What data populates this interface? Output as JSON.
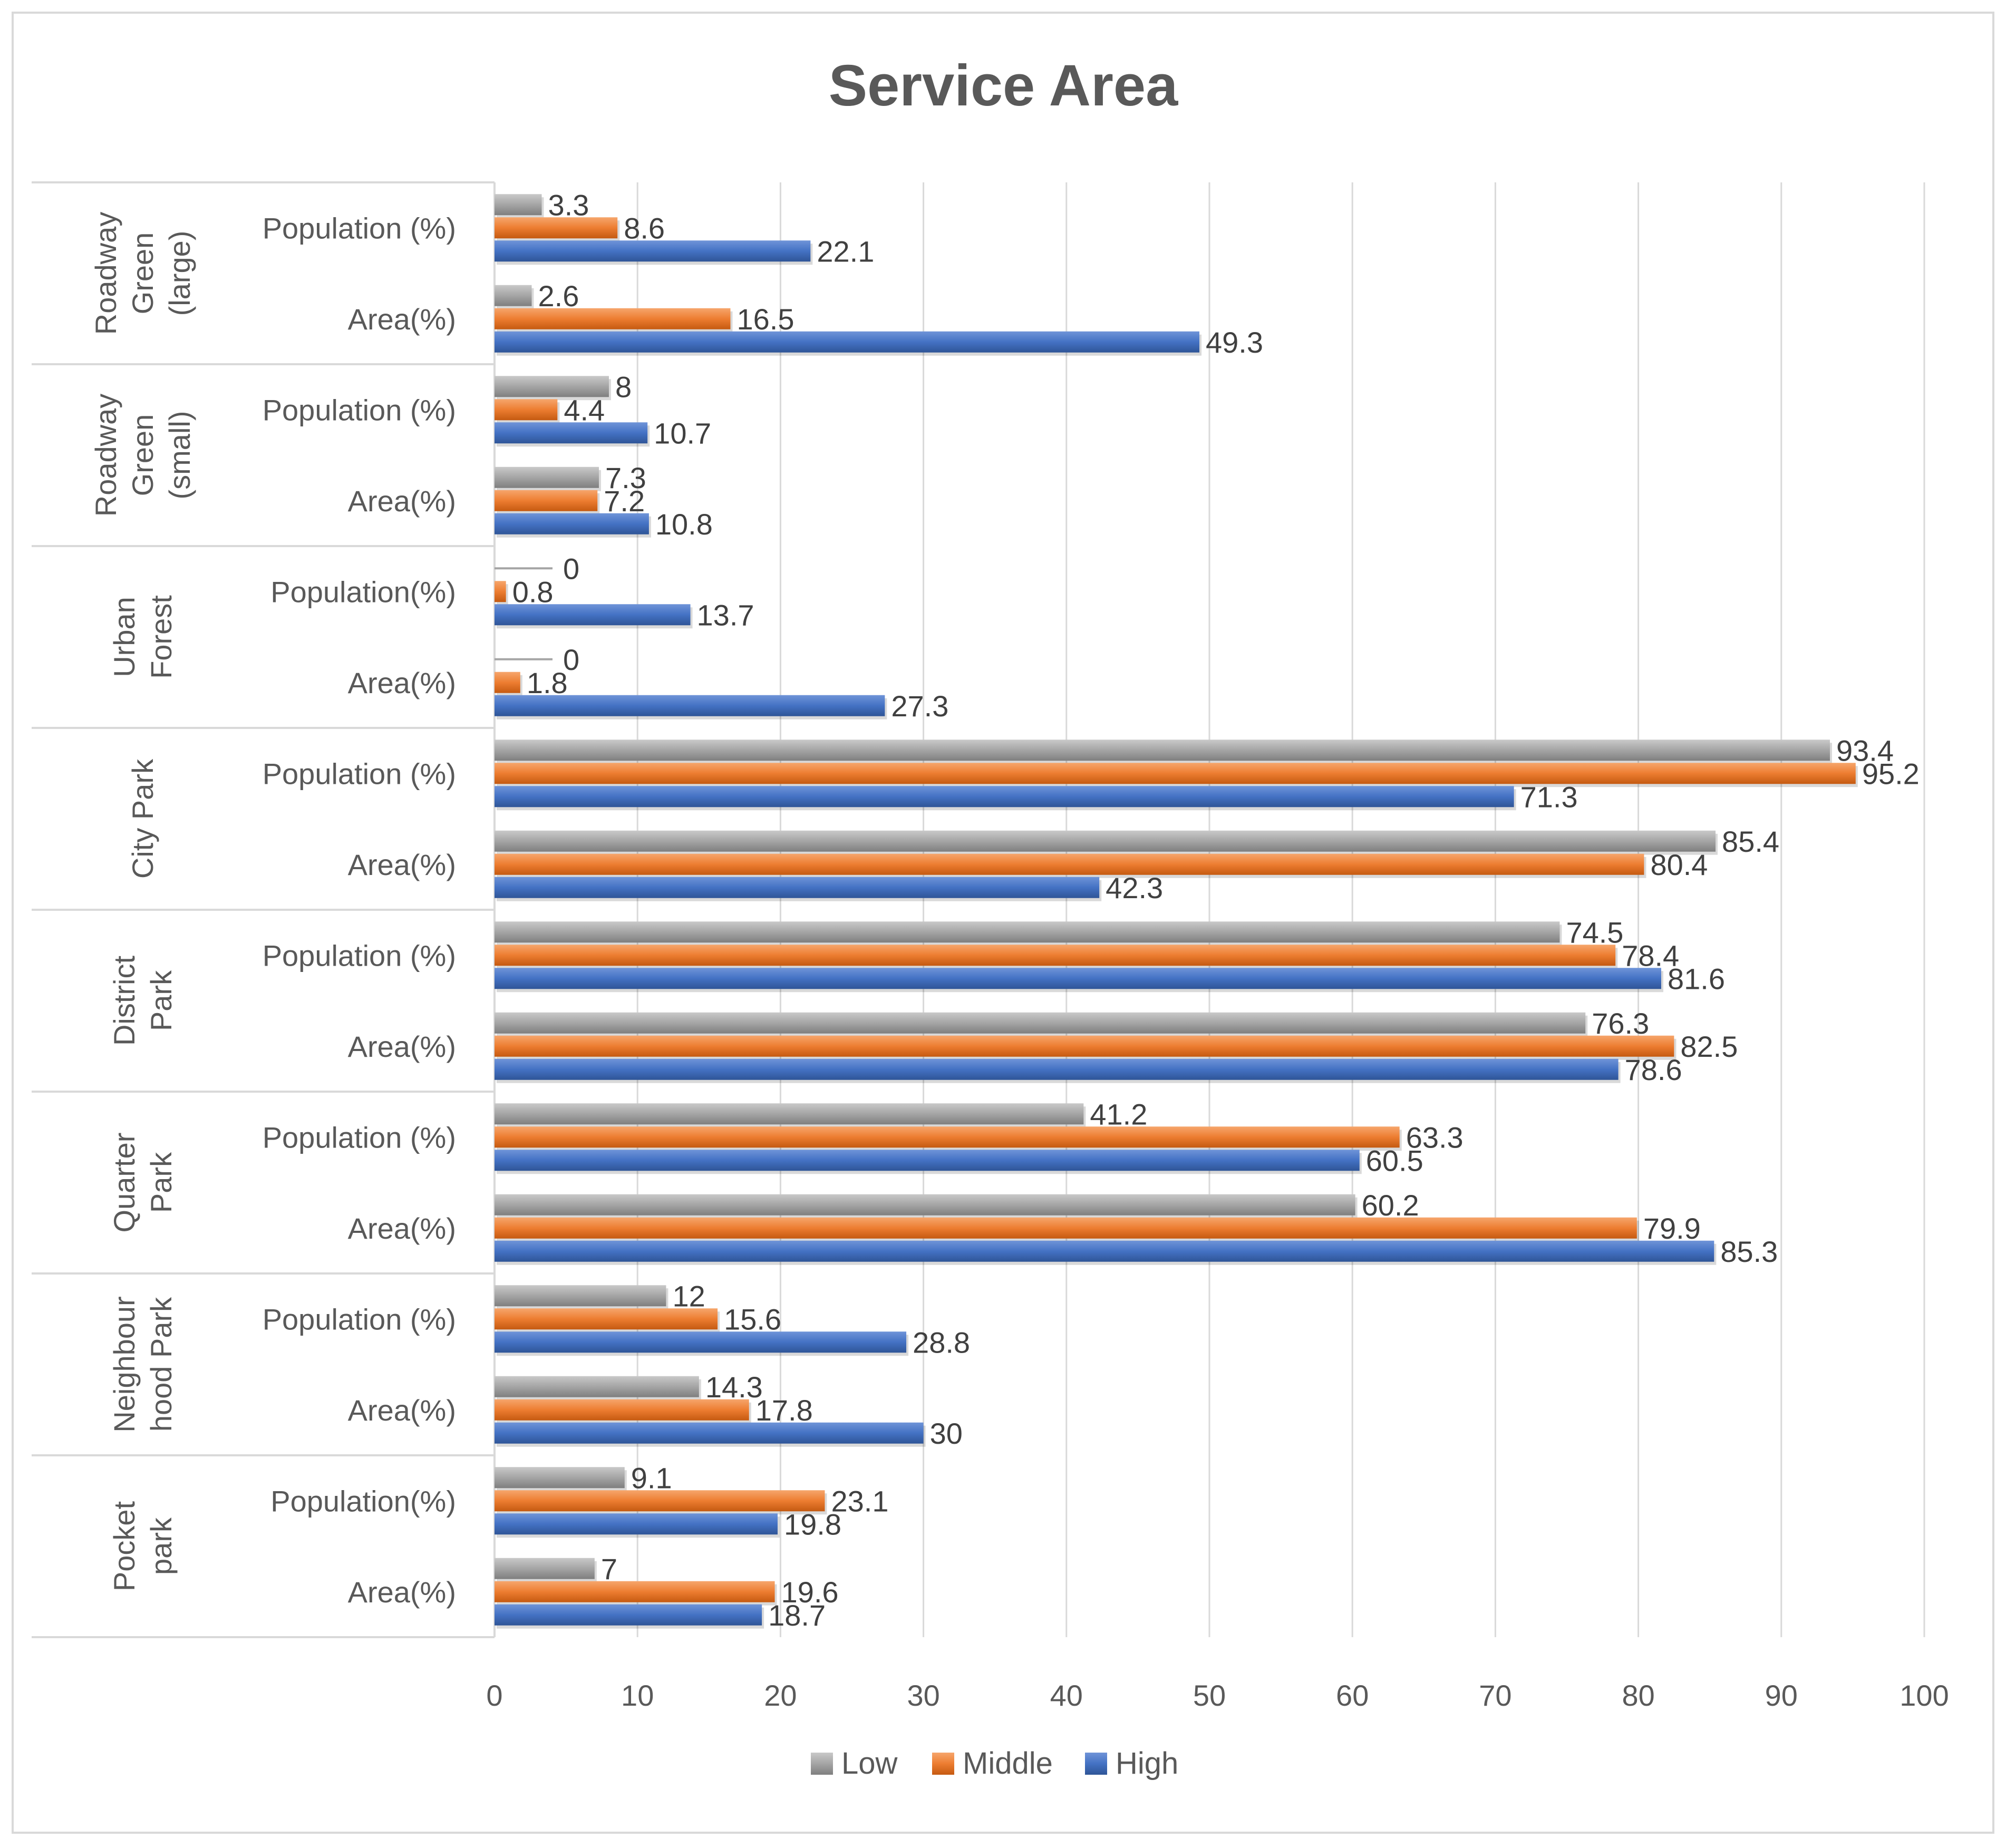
{
  "chart_data": {
    "type": "bar",
    "orientation": "horizontal",
    "title": "Service Area",
    "xlim": [
      0,
      100
    ],
    "x_ticks": [
      "0",
      "10",
      "20",
      "30",
      "40",
      "50",
      "60",
      "70",
      "80",
      "90",
      "100"
    ],
    "grid": true,
    "legend_position": "bottom",
    "legend": [
      {
        "name": "Low",
        "color": "#a5a5a5"
      },
      {
        "name": "Middle",
        "color": "#ed7d31"
      },
      {
        "name": "High",
        "color": "#4472c4"
      }
    ],
    "groups": [
      {
        "name": "Roadway Green (large)",
        "label_lines": [
          "Roadway",
          "Green",
          "(large)"
        ],
        "rows": [
          {
            "label": "Population (%)",
            "values": [
              3.3,
              8.6,
              22.1
            ],
            "labels": [
              "3.3",
              "8.6",
              "22.1"
            ]
          },
          {
            "label": "Area(%)",
            "values": [
              2.6,
              16.5,
              49.3
            ],
            "labels": [
              "2.6",
              "16.5",
              "49.3"
            ]
          }
        ]
      },
      {
        "name": "Roadway Green (small)",
        "label_lines": [
          "Roadway",
          "Green",
          "(small)"
        ],
        "rows": [
          {
            "label": "Population (%)",
            "values": [
              8,
              4.4,
              10.7
            ],
            "labels": [
              "8",
              "4.4",
              "10.7"
            ]
          },
          {
            "label": "Area(%)",
            "values": [
              7.3,
              7.2,
              10.8
            ],
            "labels": [
              "7.3",
              "7.2",
              "10.8"
            ]
          }
        ]
      },
      {
        "name": "Urban Forest",
        "label_lines": [
          "Urban",
          "Forest"
        ],
        "rows": [
          {
            "label": "Population(%)",
            "values": [
              0,
              0.8,
              13.7
            ],
            "labels": [
              "0",
              "0.8",
              "13.7"
            ]
          },
          {
            "label": "Area(%)",
            "values": [
              0,
              1.8,
              27.3
            ],
            "labels": [
              "0",
              "1.8",
              "27.3"
            ]
          }
        ]
      },
      {
        "name": "City Park",
        "label_lines": [
          "City Park"
        ],
        "rows": [
          {
            "label": "Population (%)",
            "values": [
              93.4,
              95.2,
              71.3
            ],
            "labels": [
              "93.4",
              "95.2",
              "71.3"
            ]
          },
          {
            "label": "Area(%)",
            "values": [
              85.4,
              80.4,
              42.3
            ],
            "labels": [
              "85.4",
              "80.4",
              "42.3"
            ]
          }
        ]
      },
      {
        "name": "District Park",
        "label_lines": [
          "District",
          "Park"
        ],
        "rows": [
          {
            "label": "Population (%)",
            "values": [
              74.5,
              78.4,
              81.6
            ],
            "labels": [
              "74.5",
              "78.4",
              "81.6"
            ]
          },
          {
            "label": "Area(%)",
            "values": [
              76.3,
              82.5,
              78.6
            ],
            "labels": [
              "76.3",
              "82.5",
              "78.6"
            ]
          }
        ]
      },
      {
        "name": "Quarter Park",
        "label_lines": [
          "Quarter",
          "Park"
        ],
        "rows": [
          {
            "label": "Population (%)",
            "values": [
              41.2,
              63.3,
              60.5
            ],
            "labels": [
              "41.2",
              "63.3",
              "60.5"
            ]
          },
          {
            "label": "Area(%)",
            "values": [
              60.2,
              79.9,
              85.3
            ],
            "labels": [
              "60.2",
              "79.9",
              "85.3"
            ]
          }
        ]
      },
      {
        "name": "Neighbourhood Park",
        "label_lines": [
          "Neighbour",
          "hood Park"
        ],
        "rows": [
          {
            "label": "Population (%)",
            "values": [
              12,
              15.6,
              28.8
            ],
            "labels": [
              "12",
              "15.6",
              "28.8"
            ]
          },
          {
            "label": "Area(%)",
            "values": [
              14.3,
              17.8,
              30
            ],
            "labels": [
              "14.3",
              "17.8",
              "30"
            ]
          }
        ]
      },
      {
        "name": "Pocket park",
        "label_lines": [
          "Pocket",
          "park"
        ],
        "rows": [
          {
            "label": "Population(%)",
            "values": [
              9.1,
              23.1,
              19.8
            ],
            "labels": [
              "9.1",
              "23.1",
              "19.8"
            ]
          },
          {
            "label": "Area(%)",
            "values": [
              7,
              19.6,
              18.7
            ],
            "labels": [
              "7",
              "19.6",
              "18.7"
            ]
          }
        ]
      }
    ]
  }
}
